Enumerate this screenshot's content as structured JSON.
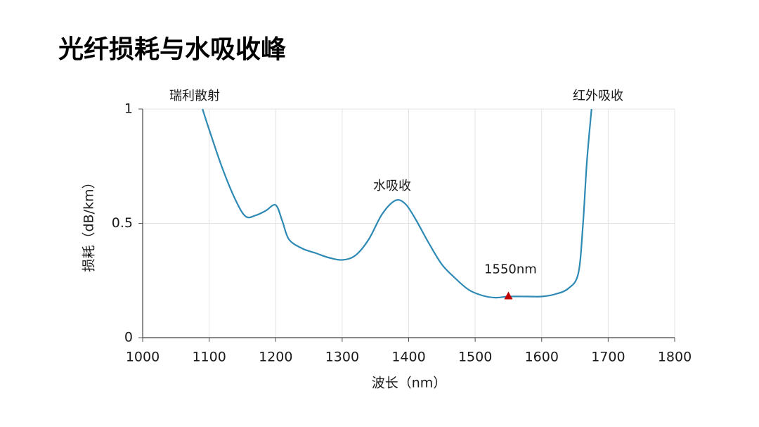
{
  "chart_data": {
    "type": "line",
    "title": "光纤损耗与水吸收峰",
    "x_label": "波长（nm）",
    "y_label": "损耗（dB/km）",
    "x": [
      1090,
      1100,
      1120,
      1140,
      1155,
      1170,
      1185,
      1200,
      1210,
      1220,
      1240,
      1260,
      1280,
      1300,
      1320,
      1340,
      1360,
      1380,
      1395,
      1410,
      1430,
      1450,
      1470,
      1490,
      1510,
      1530,
      1550,
      1580,
      1600,
      1620,
      1640,
      1655,
      1662,
      1668,
      1675
    ],
    "series": [
      {
        "color": "#2e8ab5",
        "values": [
          1.0,
          0.91,
          0.74,
          0.6,
          0.53,
          0.535,
          0.555,
          0.58,
          0.51,
          0.43,
          0.39,
          0.37,
          0.35,
          0.34,
          0.36,
          0.43,
          0.54,
          0.6,
          0.585,
          0.52,
          0.415,
          0.32,
          0.26,
          0.21,
          0.185,
          0.175,
          0.18,
          0.18,
          0.18,
          0.19,
          0.215,
          0.28,
          0.49,
          0.77,
          1.0
        ]
      }
    ],
    "marker": {
      "x": 1550,
      "y": 0.18,
      "color": "#c00000",
      "label": "1550nm"
    },
    "annotations": [
      "瑞利散射",
      "红外吸收",
      "水吸收"
    ],
    "xlim": [
      1000,
      1800
    ],
    "xticks": [
      1000,
      1100,
      1200,
      1300,
      1400,
      1500,
      1600,
      1700,
      1800
    ],
    "ylim": [
      0,
      1
    ],
    "yticks": [
      0,
      0.5,
      1
    ],
    "grid": true
  }
}
